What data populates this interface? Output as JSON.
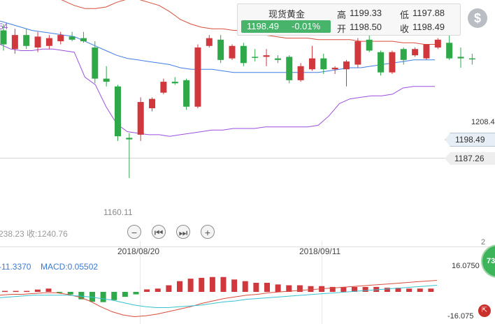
{
  "quote": {
    "name": "现货黄金",
    "price": "1198.49",
    "change": "-0.01%",
    "high_label": "高",
    "high": "1199.33",
    "low_label": "低",
    "low": "1197.88",
    "open_label": "开",
    "open": "1198.50",
    "close_label": "收",
    "close": "1198.49"
  },
  "top_left_partial": "54",
  "price_tags": {
    "upper": "1208.44",
    "current": "1198.49",
    "lower": "1187.26"
  },
  "overlay_texts": {
    "min_label": "1160.11",
    "left_info": "238.23 收:1240.76"
  },
  "controls": [
    {
      "name": "zoom-out-button",
      "glyph": "−"
    },
    {
      "name": "prev-button",
      "glyph": "⏮"
    },
    {
      "name": "next-button",
      "glyph": "⏭"
    },
    {
      "name": "zoom-in-button",
      "glyph": "+"
    }
  ],
  "dates": [
    "2018/08/20",
    "2018/09/11"
  ],
  "macd_panel": {
    "diff_label": "-11.3370",
    "macd_label": "MACD:0.05502",
    "ymax": "16.0750",
    "ymin": "-16.075"
  },
  "gauge_value": "73",
  "corner_badge": "⇱",
  "right_edge_partial": "2",
  "colors": {
    "up": "#d0383d",
    "down": "#2fa84a",
    "mid_band": "#3f7ee8",
    "upper_band": "#d94d3c",
    "lower_band": "#9b4fe0",
    "macd_dif": "#d94d3c",
    "macd_dea": "#36c2d0"
  },
  "chart_data": {
    "type": "candlestick",
    "y_range": [
      1150,
      1215
    ],
    "candles": [
      {
        "o": 1207.5,
        "h": 1209.5,
        "l": 1201.0,
        "c": 1203.0,
        "dir": "down"
      },
      {
        "o": 1201.5,
        "h": 1208.0,
        "l": 1200.0,
        "c": 1206.0,
        "dir": "up"
      },
      {
        "o": 1206.0,
        "h": 1208.0,
        "l": 1201.5,
        "c": 1202.5,
        "dir": "down"
      },
      {
        "o": 1202.0,
        "h": 1207.0,
        "l": 1200.5,
        "c": 1205.5,
        "dir": "up"
      },
      {
        "o": 1202.5,
        "h": 1206.0,
        "l": 1201.5,
        "c": 1205.0,
        "dir": "up"
      },
      {
        "o": 1204.0,
        "h": 1207.0,
        "l": 1203.0,
        "c": 1206.0,
        "dir": "up"
      },
      {
        "o": 1205.5,
        "h": 1207.0,
        "l": 1204.0,
        "c": 1204.5,
        "dir": "down"
      },
      {
        "o": 1205.0,
        "h": 1207.0,
        "l": 1203.5,
        "c": 1204.0,
        "dir": "down"
      },
      {
        "o": 1202.0,
        "h": 1204.0,
        "l": 1190.5,
        "c": 1192.0,
        "dir": "down"
      },
      {
        "o": 1192.0,
        "h": 1196.0,
        "l": 1189.5,
        "c": 1191.0,
        "dir": "down"
      },
      {
        "o": 1189.5,
        "h": 1190.0,
        "l": 1172.0,
        "c": 1173.5,
        "dir": "down"
      },
      {
        "o": 1173.0,
        "h": 1174.5,
        "l": 1160.1,
        "c": 1172.5,
        "dir": "down"
      },
      {
        "o": 1174.0,
        "h": 1186.0,
        "l": 1172.0,
        "c": 1184.5,
        "dir": "up"
      },
      {
        "o": 1182.5,
        "h": 1186.0,
        "l": 1181.5,
        "c": 1185.5,
        "dir": "up"
      },
      {
        "o": 1187.5,
        "h": 1192.0,
        "l": 1187.0,
        "c": 1191.0,
        "dir": "up"
      },
      {
        "o": 1190.5,
        "h": 1192.5,
        "l": 1190.0,
        "c": 1191.0,
        "dir": "down"
      },
      {
        "o": 1191.5,
        "h": 1192.0,
        "l": 1182.0,
        "c": 1183.0,
        "dir": "down"
      },
      {
        "o": 1183.0,
        "h": 1203.0,
        "l": 1182.5,
        "c": 1202.0,
        "dir": "up"
      },
      {
        "o": 1202.5,
        "h": 1206.0,
        "l": 1202.0,
        "c": 1205.0,
        "dir": "up"
      },
      {
        "o": 1204.5,
        "h": 1206.0,
        "l": 1197.0,
        "c": 1198.0,
        "dir": "down"
      },
      {
        "o": 1198.5,
        "h": 1203.0,
        "l": 1198.0,
        "c": 1202.5,
        "dir": "up"
      },
      {
        "o": 1202.5,
        "h": 1203.5,
        "l": 1196.0,
        "c": 1197.0,
        "dir": "down"
      },
      {
        "o": 1199.0,
        "h": 1201.5,
        "l": 1197.5,
        "c": 1199.0,
        "dir": "down"
      },
      {
        "o": 1199.0,
        "h": 1201.5,
        "l": 1196.0,
        "c": 1199.5,
        "dir": "up"
      },
      {
        "o": 1198.5,
        "h": 1199.5,
        "l": 1197.0,
        "c": 1198.0,
        "dir": "down"
      },
      {
        "o": 1199.0,
        "h": 1199.5,
        "l": 1190.5,
        "c": 1191.5,
        "dir": "down"
      },
      {
        "o": 1191.5,
        "h": 1197.0,
        "l": 1191.0,
        "c": 1196.0,
        "dir": "up"
      },
      {
        "o": 1195.0,
        "h": 1202.5,
        "l": 1194.5,
        "c": 1198.5,
        "dir": "up"
      },
      {
        "o": 1198.5,
        "h": 1200.0,
        "l": 1193.5,
        "c": 1195.0,
        "dir": "down"
      },
      {
        "o": 1195.0,
        "h": 1196.0,
        "l": 1193.5,
        "c": 1195.5,
        "dir": "up"
      },
      {
        "o": 1195.0,
        "h": 1198.0,
        "l": 1189.5,
        "c": 1197.5,
        "dir": "up"
      },
      {
        "o": 1196.5,
        "h": 1205.0,
        "l": 1195.5,
        "c": 1204.0,
        "dir": "up"
      },
      {
        "o": 1204.5,
        "h": 1206.5,
        "l": 1200.5,
        "c": 1201.0,
        "dir": "down"
      },
      {
        "o": 1200.5,
        "h": 1201.0,
        "l": 1193.0,
        "c": 1194.0,
        "dir": "down"
      },
      {
        "o": 1194.0,
        "h": 1201.0,
        "l": 1193.5,
        "c": 1200.5,
        "dir": "up"
      },
      {
        "o": 1201.5,
        "h": 1202.0,
        "l": 1196.5,
        "c": 1198.0,
        "dir": "down"
      },
      {
        "o": 1199.5,
        "h": 1202.0,
        "l": 1199.0,
        "c": 1201.5,
        "dir": "up"
      },
      {
        "o": 1198.5,
        "h": 1203.0,
        "l": 1198.0,
        "c": 1203.0,
        "dir": "up"
      },
      {
        "o": 1202.0,
        "h": 1205.0,
        "l": 1201.5,
        "c": 1204.5,
        "dir": "up"
      },
      {
        "o": 1203.5,
        "h": 1206.0,
        "l": 1198.0,
        "c": 1198.5,
        "dir": "down"
      },
      {
        "o": 1199.0,
        "h": 1202.0,
        "l": 1195.5,
        "c": 1198.5,
        "dir": "down"
      },
      {
        "o": 1198.5,
        "h": 1200.0,
        "l": 1196.5,
        "c": 1198.5,
        "dir": "down"
      }
    ],
    "bands": {
      "upper": [
        1230.5,
        1229.0,
        1226.0,
        1223.5,
        1220.0,
        1218.5,
        1217.0,
        1215.5,
        1214.5,
        1214.5,
        1215.0,
        1216.5,
        1217.5,
        1217.5,
        1216.5,
        1215.5,
        1213.5,
        1211.0,
        1209.5,
        1208.5,
        1208.0,
        1208.0,
        1207.5,
        1207.5,
        1206.5,
        1206.0,
        1205.5,
        1205.0,
        1205.0,
        1205.0,
        1204.5,
        1204.5,
        1204.5,
        1204.5,
        1204.0,
        1204.0,
        1204.0,
        1204.0,
        1203.5,
        1203.5,
        1203.0,
        1203.0
      ],
      "mid": [
        1210.5,
        1209.5,
        1208.5,
        1207.5,
        1207.0,
        1206.5,
        1206.0,
        1205.5,
        1204.0,
        1202.5,
        1201.0,
        1199.5,
        1198.5,
        1198.0,
        1197.5,
        1197.0,
        1196.5,
        1195.5,
        1195.0,
        1195.0,
        1195.0,
        1194.5,
        1194.0,
        1194.0,
        1194.0,
        1194.0,
        1194.0,
        1194.0,
        1194.0,
        1194.0,
        1194.0,
        1194.5,
        1195.0,
        1195.5,
        1195.5,
        1196.0,
        1196.5,
        1197.0,
        1197.5,
        1198.0,
        1198.0,
        1198.0
      ],
      "lower": [
        1203.0,
        1201.5,
        1201.0,
        1201.0,
        1201.5,
        1201.5,
        1201.0,
        1200.5,
        1192.5,
        1190.0,
        1183.0,
        1177.5,
        1175.0,
        1174.5,
        1174.0,
        1174.0,
        1173.5,
        1174.0,
        1174.5,
        1175.0,
        1175.5,
        1175.5,
        1176.0,
        1176.0,
        1176.0,
        1176.5,
        1176.5,
        1176.5,
        1176.5,
        1176.5,
        1177.0,
        1180.0,
        1184.0,
        1185.5,
        1186.0,
        1186.5,
        1186.5,
        1187.0,
        1189.0,
        1189.5,
        1189.5,
        1189.5
      ]
    },
    "macd_hist": [
      0.6,
      0.6,
      0.6,
      1.4,
      2.0,
      -0.6,
      -1.6,
      -4.5,
      -6.0,
      -6.2,
      -5.0,
      -3.0,
      -1.5,
      1.5,
      2.0,
      4.0,
      6.5,
      8.0,
      8.5,
      9.0,
      9.0,
      7.5,
      6.5,
      5.5,
      5.5,
      4.5,
      4.0,
      4.0,
      3.5,
      3.5,
      3.0,
      3.0,
      3.0,
      3.0,
      3.0,
      2.5,
      2.5,
      2.0,
      2.0,
      2.0
    ],
    "macd_dif": [
      -2.0,
      -1.5,
      -1.5,
      -1.0,
      -0.5,
      -0.5,
      -1.5,
      -3.0,
      -5.5,
      -9.0,
      -12.0,
      -14.0,
      -15.0,
      -14.5,
      -13.5,
      -12.0,
      -10.5,
      -9.0,
      -7.0,
      -5.5,
      -4.0,
      -3.0,
      -2.0,
      -1.5,
      -0.5,
      0.0,
      0.5,
      1.0,
      1.5,
      2.0,
      2.5,
      3.0,
      3.5,
      4.0,
      4.5,
      5.0,
      5.5,
      6.0,
      6.5,
      7.0
    ],
    "macd_dea": [
      -3.5,
      -3.0,
      -2.5,
      -2.0,
      -2.0,
      -2.0,
      -2.0,
      -2.5,
      -3.0,
      -4.0,
      -5.0,
      -6.5,
      -8.0,
      -9.0,
      -9.5,
      -9.5,
      -9.0,
      -8.5,
      -8.0,
      -7.0,
      -6.0,
      -5.5,
      -4.5,
      -4.0,
      -3.5,
      -3.0,
      -2.5,
      -2.0,
      -1.5,
      -1.0,
      -0.5,
      0.0,
      0.5,
      1.0,
      1.5,
      2.0,
      2.5,
      3.0,
      3.5,
      4.0
    ],
    "macd_range": [
      -16.075,
      16.075
    ]
  }
}
